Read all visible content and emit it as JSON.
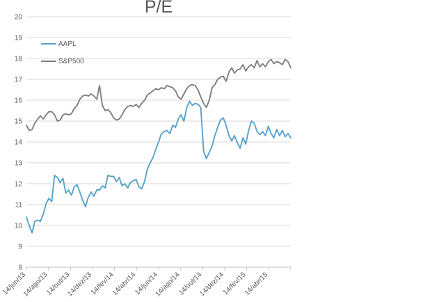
{
  "chart_data": {
    "type": "line",
    "title": "P/E",
    "xlabel": "",
    "ylabel": "",
    "ylim": [
      8,
      20
    ],
    "y_tick_labels": [
      "8",
      "9",
      "10",
      "11",
      "12",
      "13",
      "14",
      "15",
      "16",
      "17",
      "18",
      "19",
      "20"
    ],
    "x_tick_labels": [
      "14/jun/13",
      "14/ago/13",
      "14/out/13",
      "14/dez/13",
      "14/fev/14",
      "14/abr/14",
      "14/jun/14",
      "14/ago/14",
      "14/out/14",
      "14/dez/14",
      "14/fev/15",
      "14/abr/15"
    ],
    "grid": "horizontal",
    "legend_position": "upper-left-inside",
    "series": [
      {
        "name": "AAPL",
        "color": "#58A1CC",
        "values": [
          10.4,
          10.0,
          9.65,
          10.2,
          10.25,
          10.2,
          10.55,
          11.05,
          11.3,
          11.15,
          12.4,
          12.3,
          12.05,
          12.25,
          11.55,
          11.7,
          11.45,
          11.85,
          11.95,
          11.6,
          11.2,
          10.9,
          11.35,
          11.6,
          11.4,
          11.7,
          11.7,
          11.9,
          11.8,
          12.4,
          12.35,
          12.35,
          12.1,
          12.3,
          11.9,
          12.0,
          11.8,
          12.05,
          12.15,
          12.2,
          11.85,
          11.75,
          12.1,
          12.7,
          13.0,
          13.25,
          13.65,
          14.0,
          14.4,
          14.5,
          14.55,
          14.4,
          14.8,
          14.7,
          15.1,
          15.3,
          15.0,
          15.65,
          15.95,
          15.75,
          15.85,
          15.8,
          15.65,
          13.55,
          13.2,
          13.5,
          13.8,
          14.3,
          14.7,
          15.05,
          15.15,
          14.8,
          14.3,
          14.05,
          14.3,
          13.95,
          13.7,
          14.2,
          13.9,
          14.55,
          15.0,
          14.9,
          14.5,
          14.35,
          14.5,
          14.3,
          14.75,
          14.4,
          14.2,
          14.6,
          14.3,
          14.55,
          14.25,
          14.4,
          14.2
        ]
      },
      {
        "name": "S&P500",
        "color": "#7F7F7F",
        "values": [
          14.8,
          14.55,
          14.6,
          14.9,
          15.1,
          15.25,
          15.1,
          15.3,
          15.45,
          15.45,
          15.3,
          15.0,
          15.05,
          15.3,
          15.35,
          15.3,
          15.35,
          15.6,
          15.75,
          16.05,
          16.2,
          16.25,
          16.2,
          16.3,
          16.2,
          16.05,
          16.7,
          15.75,
          15.5,
          15.55,
          15.4,
          15.15,
          15.05,
          15.1,
          15.3,
          15.55,
          15.7,
          15.75,
          15.7,
          15.8,
          15.65,
          15.85,
          16.0,
          16.25,
          16.35,
          16.45,
          16.55,
          16.5,
          16.6,
          16.55,
          16.7,
          16.65,
          16.6,
          16.45,
          16.15,
          16.05,
          16.3,
          16.55,
          16.7,
          16.75,
          16.7,
          16.5,
          16.15,
          15.85,
          15.65,
          16.0,
          16.6,
          16.75,
          17.0,
          17.1,
          17.15,
          16.9,
          17.35,
          17.55,
          17.3,
          17.45,
          17.5,
          17.7,
          17.4,
          17.6,
          17.7,
          17.55,
          17.9,
          17.6,
          17.75,
          17.6,
          17.85,
          17.95,
          17.75,
          17.85,
          17.8,
          17.7,
          17.95,
          17.85,
          17.55
        ]
      }
    ],
    "colors": {
      "gridline": "#D9D9D9",
      "axis_line": "#BFBFBF",
      "tick_text": "#595959",
      "title_text": "#555555",
      "background": "#FFFFFF"
    }
  }
}
